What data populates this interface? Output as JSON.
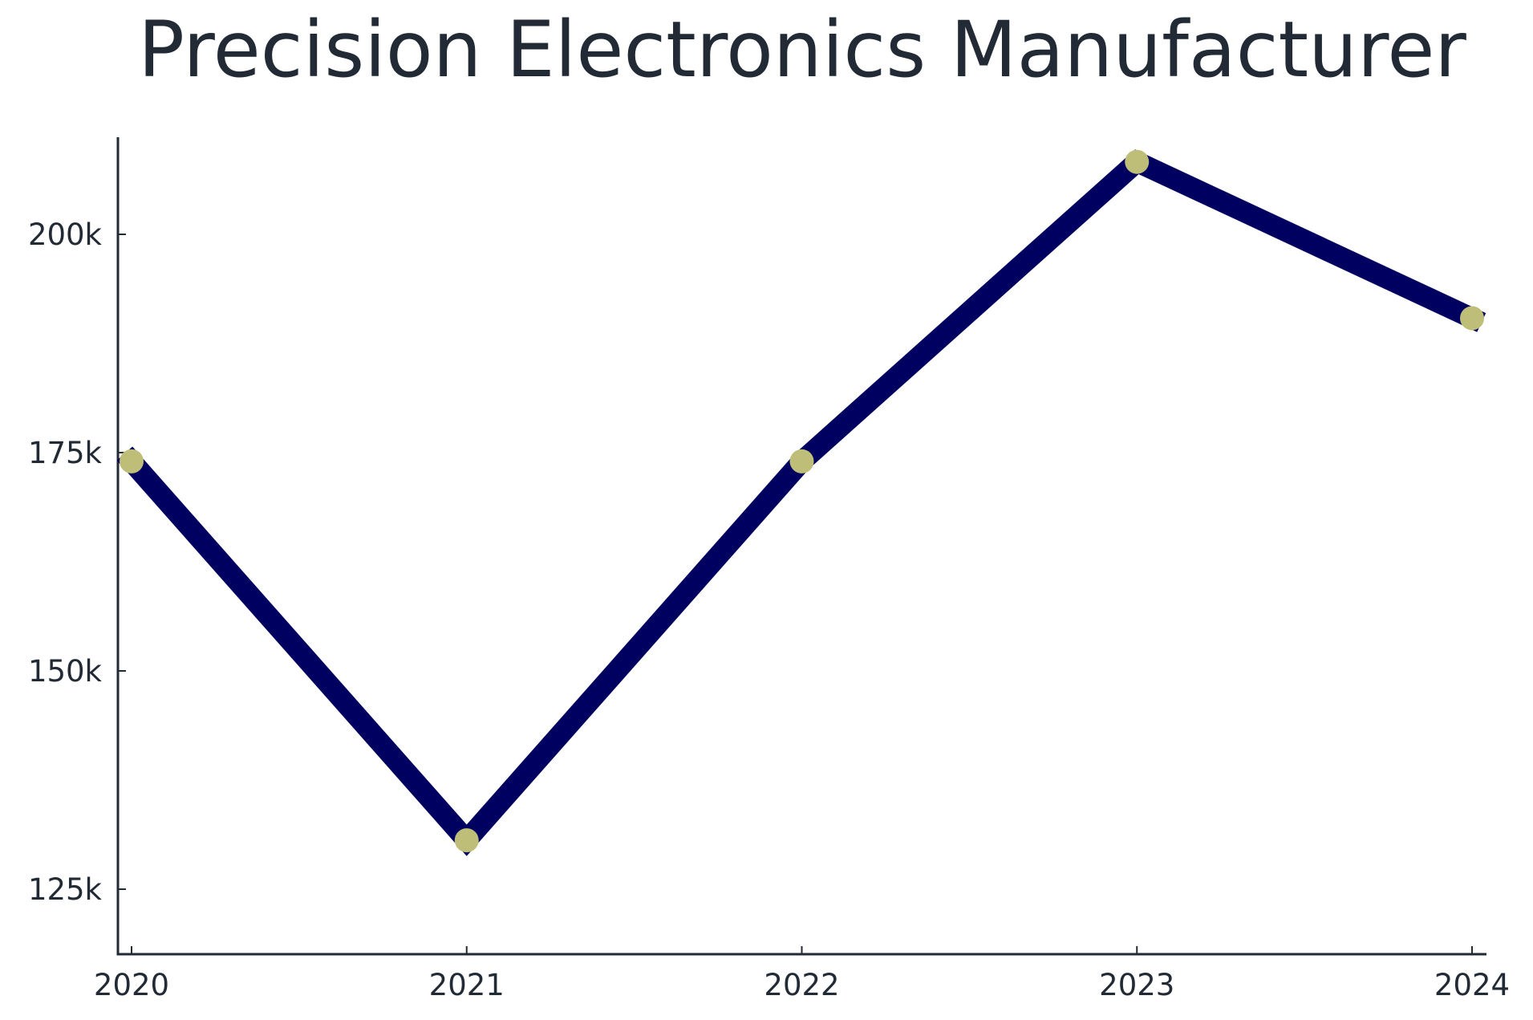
{
  "title": "Precision Electronics Manufacturer",
  "colors": {
    "line": "#000060",
    "marker": "#bebe78",
    "axis": "#222a35",
    "text": "#222a35",
    "background": "#ffffff"
  },
  "chart_data": {
    "type": "line",
    "title": "Precision Electronics Manufacturer",
    "xlabel": "",
    "ylabel": "",
    "categories": [
      "2020",
      "2021",
      "2022",
      "2023",
      "2024"
    ],
    "series": [
      {
        "name": "Value",
        "values": [
          174000,
          130600,
          174000,
          208300,
          190400
        ]
      }
    ],
    "yticks": [
      125000,
      150000,
      175000,
      200000
    ],
    "ytick_labels": [
      "125k",
      "150k",
      "175k",
      "200k"
    ],
    "ylim": [
      117500,
      210500
    ],
    "grid": false,
    "legend": null
  }
}
